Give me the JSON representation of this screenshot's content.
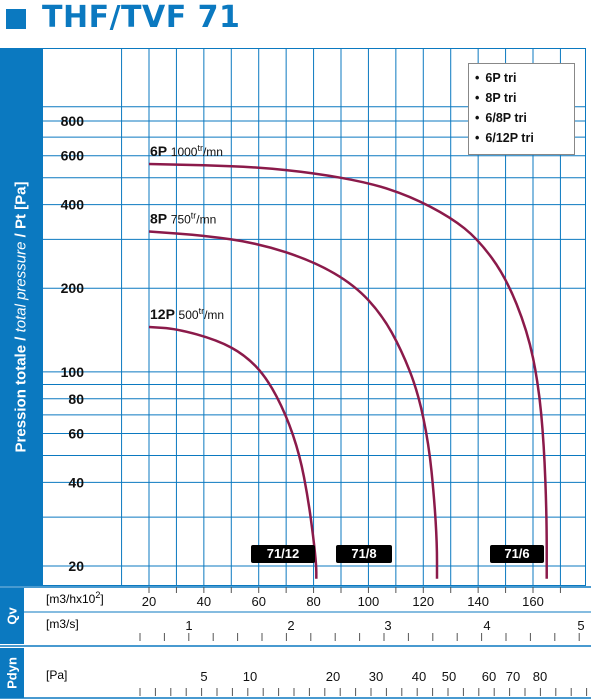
{
  "title": "THF/TVF 71",
  "ylabel_normal": "Pression totale / ",
  "ylabel_italic": "total pressure",
  "ylabel_end": " / Pt [Pa]",
  "colors": {
    "brand_blue": "#0b79c0",
    "curve": "#8b1a4a",
    "grid": "#0b79c0"
  },
  "legend": [
    "6P tri",
    "8P tri",
    "6/8P tri",
    "6/12P tri"
  ],
  "badges": [
    "71/12",
    "71/8",
    "71/6"
  ],
  "qv_label": "Qv",
  "pdyn_label": "Pdyn",
  "unit_m3h": "[m3/hx10",
  "unit_m3h_sup": "2",
  "unit_m3h_end": "]",
  "unit_m3s": "[m3/s]",
  "unit_pa": "[Pa]",
  "chart_data": {
    "type": "line",
    "title": "THF/TVF 71",
    "ylabel": "Pression totale / total pressure / Pt [Pa]",
    "xlabel": "[m3/hx10 2]",
    "xlim": [
      10,
      180
    ],
    "ylim": [
      18,
      1200
    ],
    "yscale": "log",
    "x_ticks": [
      20,
      40,
      60,
      80,
      100,
      120,
      140,
      160
    ],
    "y_ticks": [
      20,
      40,
      60,
      80,
      100,
      200,
      400,
      600,
      800
    ],
    "m3s_ticks": [
      "1",
      "2",
      "3",
      "4",
      "5"
    ],
    "pdyn_ticks": [
      "5",
      "10",
      "20",
      "30",
      "40",
      "50",
      "60",
      "70",
      "80"
    ],
    "series": [
      {
        "name": "6P",
        "label_speed": "1000",
        "label_unit": "mn",
        "x": [
          20,
          40,
          60,
          80,
          100,
          115,
          130,
          140,
          150,
          158,
          162,
          164,
          165,
          165
        ],
        "y": [
          560,
          555,
          545,
          520,
          480,
          430,
          360,
          300,
          220,
          140,
          90,
          55,
          30,
          18
        ]
      },
      {
        "name": "8P",
        "label_speed": "750",
        "label_unit": "mn",
        "x": [
          20,
          40,
          60,
          80,
          95,
          105,
          112,
          118,
          122,
          124,
          125,
          125
        ],
        "y": [
          320,
          310,
          290,
          250,
          205,
          160,
          120,
          85,
          55,
          35,
          24,
          18
        ]
      },
      {
        "name": "12P",
        "label_speed": "500",
        "label_unit": "mn",
        "x": [
          20,
          30,
          45,
          55,
          63,
          70,
          75,
          78,
          80,
          81,
          81
        ],
        "y": [
          145,
          143,
          130,
          115,
          95,
          70,
          50,
          35,
          25,
          20,
          18
        ]
      }
    ]
  }
}
